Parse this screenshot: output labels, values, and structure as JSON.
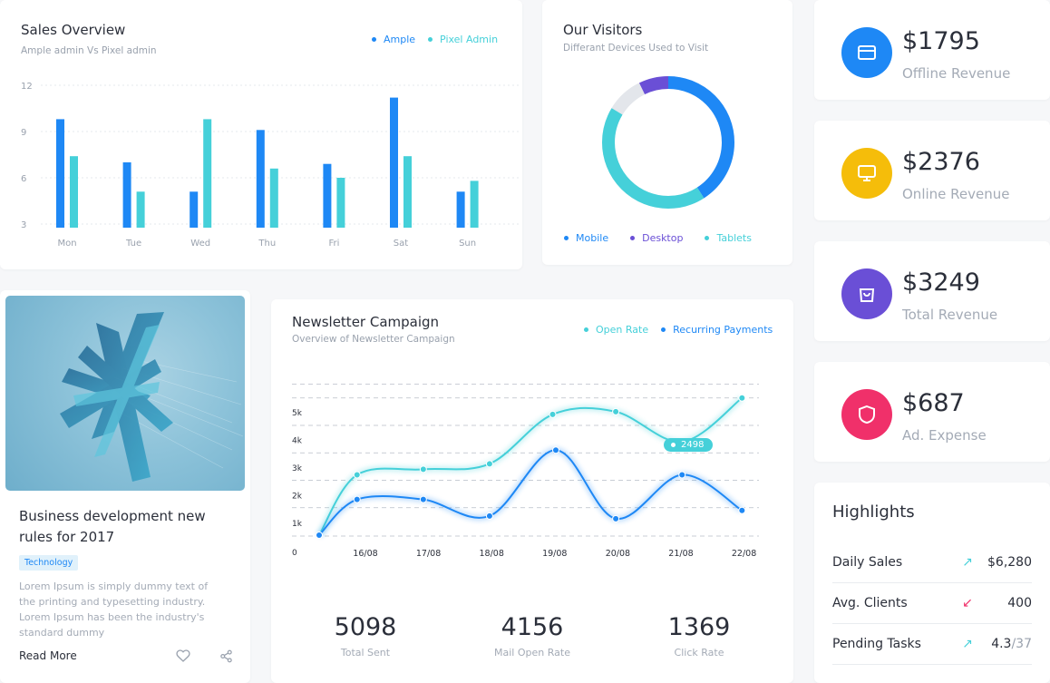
{
  "sales": {
    "title": "Sales Overview",
    "subtitle": "Ample admin Vs Pixel admin",
    "legend": [
      {
        "label": "Ample",
        "color": "#1e88f5"
      },
      {
        "label": "Pixel Admin",
        "color": "#45d0d9"
      }
    ]
  },
  "visitors": {
    "title": "Our Visitors",
    "subtitle": "Differant Devices Used to Visit",
    "legend": [
      {
        "label": "Mobile",
        "color": "#1e88f5"
      },
      {
        "label": "Desktop",
        "color": "#6a4fd6"
      },
      {
        "label": "Tablets",
        "color": "#45d0d9"
      }
    ]
  },
  "blog": {
    "title": "Business development new rules for 2017",
    "tag": "Technology",
    "body": "Lorem Ipsum is simply dummy text of the printing and typesetting industry. Lorem Ipsum has been the industry's standard dummy",
    "read_more": "Read More",
    "heart_icon": "heart-icon",
    "share_icon": "share-icon"
  },
  "newsletter": {
    "title": "Newsletter Campaign",
    "subtitle": "Overview of Newsletter Campaign",
    "legend": [
      {
        "label": "Open Rate",
        "color": "#45d0d9"
      },
      {
        "label": "Recurring Payments",
        "color": "#1e88f5"
      }
    ],
    "tooltip": "2498",
    "stats": [
      {
        "value": "5098",
        "label": "Total Sent"
      },
      {
        "value": "4156",
        "label": "Mail Open Rate"
      },
      {
        "value": "1369",
        "label": "Click Rate"
      }
    ]
  },
  "revenue": [
    {
      "value": "$1795",
      "label": "Offline Revenue",
      "color": "#1e88f5",
      "icon": "card-icon"
    },
    {
      "value": "$2376",
      "label": "Online Revenue",
      "color": "#f5bd0a",
      "icon": "monitor-icon"
    },
    {
      "value": "$3249",
      "label": "Total Revenue",
      "color": "#6a4fd6",
      "icon": "bag-icon"
    },
    {
      "value": "$687",
      "label": "Ad. Expense",
      "color": "#f0306a",
      "icon": "shield-icon"
    }
  ],
  "highlights": {
    "title": "Highlights",
    "rows": [
      {
        "name": "Daily Sales",
        "value": "$6,280",
        "value_suffix": "",
        "arrow": "↗",
        "arrow_color": "#45d0d9"
      },
      {
        "name": "Avg. Clients",
        "value": "400",
        "value_suffix": "",
        "arrow": "↙",
        "arrow_color": "#f0306a"
      },
      {
        "name": "Pending Tasks",
        "value": "4.3",
        "value_suffix": "/37",
        "arrow": "↗",
        "arrow_color": "#45d0d9"
      }
    ]
  },
  "chart_data": [
    {
      "type": "bar",
      "categories": [
        "Mon",
        "Tue",
        "Wed",
        "Thu",
        "Fri",
        "Sat",
        "Sun"
      ],
      "series": [
        {
          "name": "Ample",
          "values": [
            9.8,
            7.0,
            5.1,
            9.1,
            6.9,
            11.2,
            5.1
          ]
        },
        {
          "name": "Pixel Admin",
          "values": [
            7.4,
            5.1,
            9.8,
            6.6,
            6.0,
            7.4,
            5.8
          ]
        }
      ],
      "yticks": [
        "3",
        "6",
        "9",
        "12"
      ],
      "ylim": [
        0,
        12
      ]
    },
    {
      "type": "pie",
      "labels": [
        "Mobile",
        "Desktop",
        "Tablets"
      ],
      "values": [
        45,
        8,
        47
      ],
      "other_value": 0
    },
    {
      "type": "line",
      "x": [
        "16/08",
        "17/08",
        "18/08",
        "19/08",
        "20/08",
        "21/08",
        "22/08"
      ],
      "yticks": [
        "0",
        "1k",
        "2k",
        "3k",
        "4k",
        "5k"
      ],
      "ylim": [
        0,
        5.5
      ],
      "series": [
        {
          "name": "Open Rate",
          "points": [
            [
              0,
              0
            ],
            [
              0.6,
              2.2
            ],
            [
              1.65,
              2.4
            ],
            [
              2.7,
              2.6
            ],
            [
              3.7,
              4.4
            ],
            [
              4.7,
              4.5
            ],
            [
              5.75,
              3.4
            ],
            [
              6.7,
              5.0
            ]
          ]
        },
        {
          "name": "Recurring Payments",
          "points": [
            [
              0,
              0
            ],
            [
              0.6,
              1.3
            ],
            [
              1.65,
              1.3
            ],
            [
              2.7,
              0.7
            ],
            [
              3.75,
              3.1
            ],
            [
              4.7,
              0.6
            ],
            [
              5.75,
              2.2
            ],
            [
              6.7,
              0.9
            ]
          ]
        }
      ]
    }
  ]
}
